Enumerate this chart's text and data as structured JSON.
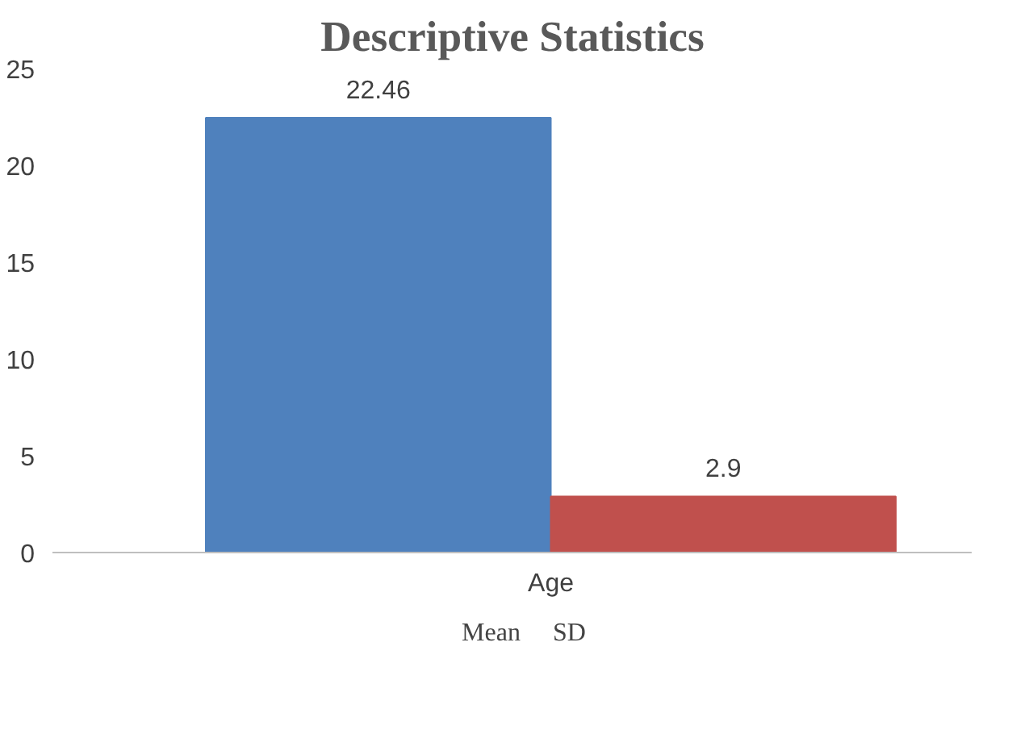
{
  "chart_data": {
    "type": "bar",
    "title": "Descriptive Statistics",
    "categories": [
      "Age"
    ],
    "series": [
      {
        "name": "Mean",
        "color": "#4f81bd",
        "values": [
          22.46
        ]
      },
      {
        "name": "SD",
        "color": "#c0504d",
        "values": [
          2.9
        ]
      }
    ],
    "ylim": [
      0,
      25
    ],
    "yticks": [
      0,
      5,
      10,
      15,
      20,
      25
    ],
    "grid": false,
    "legend": "bottom",
    "data_labels": true
  }
}
